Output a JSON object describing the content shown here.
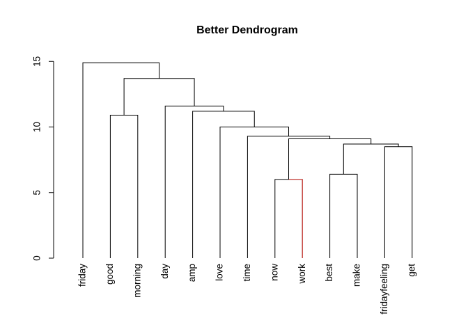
{
  "chart_data": {
    "type": "dendrogram",
    "title": "Better Dendrogram",
    "xlabel": "",
    "ylabel": "",
    "ylim": [
      0,
      15
    ],
    "yticks": [
      0,
      5,
      10,
      15
    ],
    "grid": false,
    "leaves": [
      "friday",
      "good",
      "morning",
      "day",
      "amp",
      "love",
      "time",
      "now",
      "work",
      "best",
      "make",
      "fridayfeeling",
      "get"
    ],
    "merges": [
      {
        "left": "now",
        "right": "work",
        "height": 6.0,
        "color": "#e0302a"
      },
      {
        "left": "best",
        "right": "make",
        "height": 6.4
      },
      {
        "left": "fridayfeeling",
        "right": "get",
        "height": 8.5
      },
      {
        "left": "best+make",
        "right": "fridayfeeling+get",
        "height": 8.7
      },
      {
        "left": "now+work",
        "right": "best+make+fridayfeeling+get",
        "height": 9.1
      },
      {
        "left": "time",
        "right": "now+work+best+make+fridayfeeling+get",
        "height": 9.3
      },
      {
        "left": "love",
        "right": "time+now+work+best+make+fridayfeeling+get",
        "height": 10.0
      },
      {
        "left": "good",
        "right": "morning",
        "height": 10.9
      },
      {
        "left": "amp",
        "right": "love+time+now+work+best+make+fridayfeeling+get",
        "height": 11.2
      },
      {
        "left": "day",
        "right": "amp+love+time+now+work+best+make+fridayfeeling+get",
        "height": 11.6
      },
      {
        "left": "good+morning",
        "right": "day+amp+love+time+now+work+best+make+fridayfeeling+get",
        "height": 13.7
      },
      {
        "left": "friday",
        "right": "good+morning+day+amp+love+time+now+work+best+make+fridayfeeling+get",
        "height": 14.9
      }
    ]
  }
}
